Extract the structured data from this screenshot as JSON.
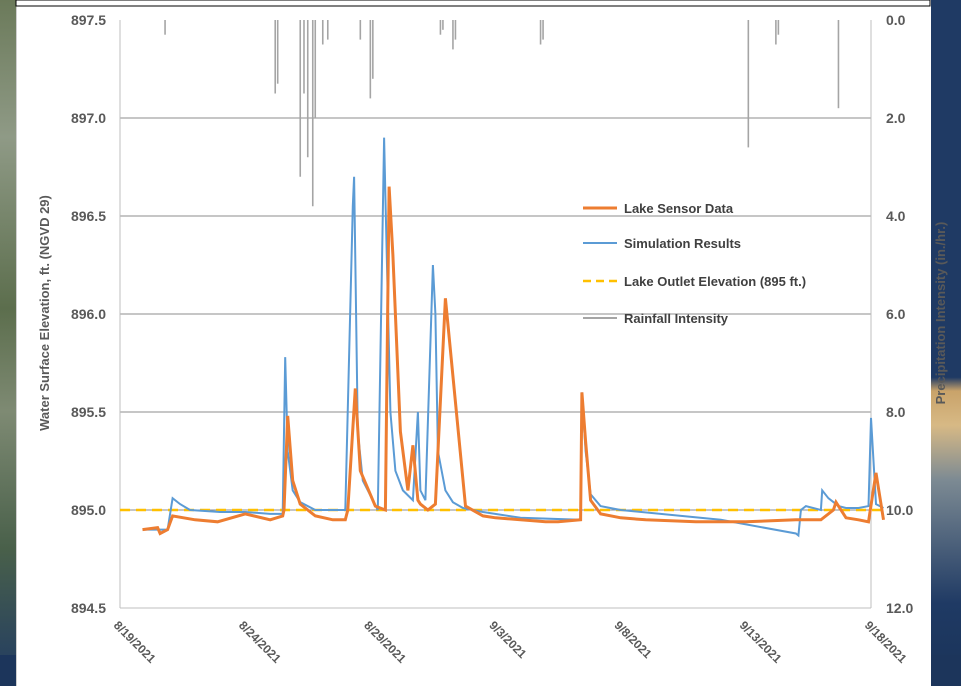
{
  "chart_data": {
    "type": "line",
    "title": "",
    "ylabel": "Water Surface Elevation, ft. (NGVD 29)",
    "y2label": "Precipitation Intensity (in./hr.)",
    "ylim": [
      894.5,
      897.5
    ],
    "y2lim": [
      12.0,
      0.0
    ],
    "y2_inverted": true,
    "grid": true,
    "legend_position": "right-center",
    "yticks": [
      "894.5",
      "895.0",
      "895.5",
      "896.0",
      "896.5",
      "897.0",
      "897.5"
    ],
    "y2ticks": [
      "0.0",
      "2.0",
      "4.0",
      "6.0",
      "8.0",
      "10.0",
      "12.0"
    ],
    "xticks": [
      "8/19/2021",
      "8/24/2021",
      "8/29/2021",
      "9/3/2021",
      "9/8/2021",
      "9/13/2021",
      "9/18/2021"
    ],
    "xrange_days": [
      0,
      30
    ],
    "colors": {
      "sensor": "#ed7d31",
      "sim": "#5b9bd5",
      "outlet": "#ffc000",
      "rain": "#a5a5a5"
    },
    "series": [
      {
        "name": "Lake Sensor Data",
        "x": [
          0.9,
          1.5,
          1.6,
          1.9,
          2.1,
          3.0,
          3.9,
          5.0,
          6.0,
          6.5,
          6.55,
          6.7,
          6.9,
          7.2,
          7.8,
          8.5,
          9.0,
          9.1,
          9.4,
          9.6,
          10.2,
          10.6,
          10.75,
          10.9,
          11.2,
          11.5,
          11.7,
          11.9,
          12.0,
          12.3,
          12.6,
          13.0,
          13.8,
          14.5,
          15.0,
          16.0,
          17.0,
          17.5,
          18.4,
          18.45,
          18.6,
          18.8,
          19.2,
          20.0,
          21.0,
          23.0,
          25.0,
          27.0,
          28.0,
          28.5,
          28.6,
          29.0,
          29.5,
          29.9,
          30.2,
          30.5
        ],
        "y": [
          894.9,
          894.91,
          894.88,
          894.9,
          894.97,
          894.95,
          894.94,
          894.98,
          894.95,
          894.97,
          895.0,
          895.48,
          895.15,
          895.03,
          894.97,
          894.95,
          894.95,
          895.0,
          895.62,
          895.2,
          895.02,
          895.0,
          896.65,
          896.3,
          895.4,
          895.1,
          895.33,
          895.05,
          895.03,
          895.0,
          895.03,
          896.08,
          895.02,
          894.97,
          894.96,
          894.95,
          894.94,
          894.94,
          894.95,
          895.6,
          895.35,
          895.05,
          894.98,
          894.96,
          894.95,
          894.94,
          894.94,
          894.95,
          894.95,
          895.0,
          895.04,
          894.96,
          894.95,
          894.94,
          895.19,
          894.95
        ]
      },
      {
        "name": "Simulation Results",
        "x": [
          0.9,
          1.9,
          2.1,
          2.4,
          2.8,
          4.0,
          5.0,
          6.0,
          6.5,
          6.6,
          6.7,
          6.9,
          7.2,
          7.8,
          8.5,
          9.0,
          9.3,
          9.35,
          9.5,
          9.7,
          10.1,
          10.3,
          10.55,
          10.6,
          10.8,
          11.0,
          11.3,
          11.7,
          11.9,
          12.0,
          12.2,
          12.5,
          12.6,
          12.7,
          13.0,
          13.3,
          13.7,
          14.5,
          16.0,
          18.4,
          18.45,
          18.6,
          18.8,
          19.2,
          20.0,
          24.0,
          27.0,
          27.1,
          27.2,
          27.4,
          28.0,
          28.05,
          28.3,
          28.7,
          29.0,
          29.5,
          29.9,
          30.0,
          30.2,
          30.5
        ],
        "y": [
          894.9,
          894.9,
          895.06,
          895.03,
          895.0,
          894.99,
          894.99,
          894.98,
          894.98,
          895.78,
          895.3,
          895.1,
          895.04,
          895.0,
          895.0,
          895.0,
          896.55,
          896.7,
          895.4,
          895.15,
          895.05,
          895.0,
          896.9,
          896.6,
          895.5,
          895.2,
          895.1,
          895.05,
          895.5,
          895.1,
          895.05,
          896.25,
          896.0,
          895.3,
          895.1,
          895.04,
          895.01,
          894.99,
          894.96,
          894.95,
          895.6,
          895.3,
          895.08,
          895.02,
          895.0,
          894.95,
          894.88,
          894.87,
          895.0,
          895.02,
          895.0,
          895.1,
          895.06,
          895.02,
          895.01,
          895.01,
          895.02,
          895.47,
          895.03,
          895.01
        ]
      },
      {
        "name": "Lake Outlet Elevation (895 ft.)",
        "x": [
          0,
          30.5
        ],
        "y": [
          895.0,
          895.0
        ]
      },
      {
        "name": "Rainfall Intensity",
        "axis": "secondary",
        "x": [
          1.8,
          6.2,
          6.3,
          7.2,
          7.35,
          7.5,
          7.7,
          7.8,
          8.1,
          8.3,
          9.6,
          10.0,
          10.1,
          12.8,
          12.9,
          13.3,
          13.4,
          16.8,
          16.9,
          25.1,
          26.2,
          26.3,
          28.7
        ],
        "y": [
          0.3,
          1.5,
          1.3,
          3.2,
          1.5,
          2.8,
          3.8,
          2.0,
          0.5,
          0.4,
          0.4,
          1.6,
          1.2,
          0.3,
          0.2,
          0.6,
          0.4,
          0.5,
          0.4,
          2.6,
          0.5,
          0.3,
          1.8
        ]
      }
    ]
  }
}
